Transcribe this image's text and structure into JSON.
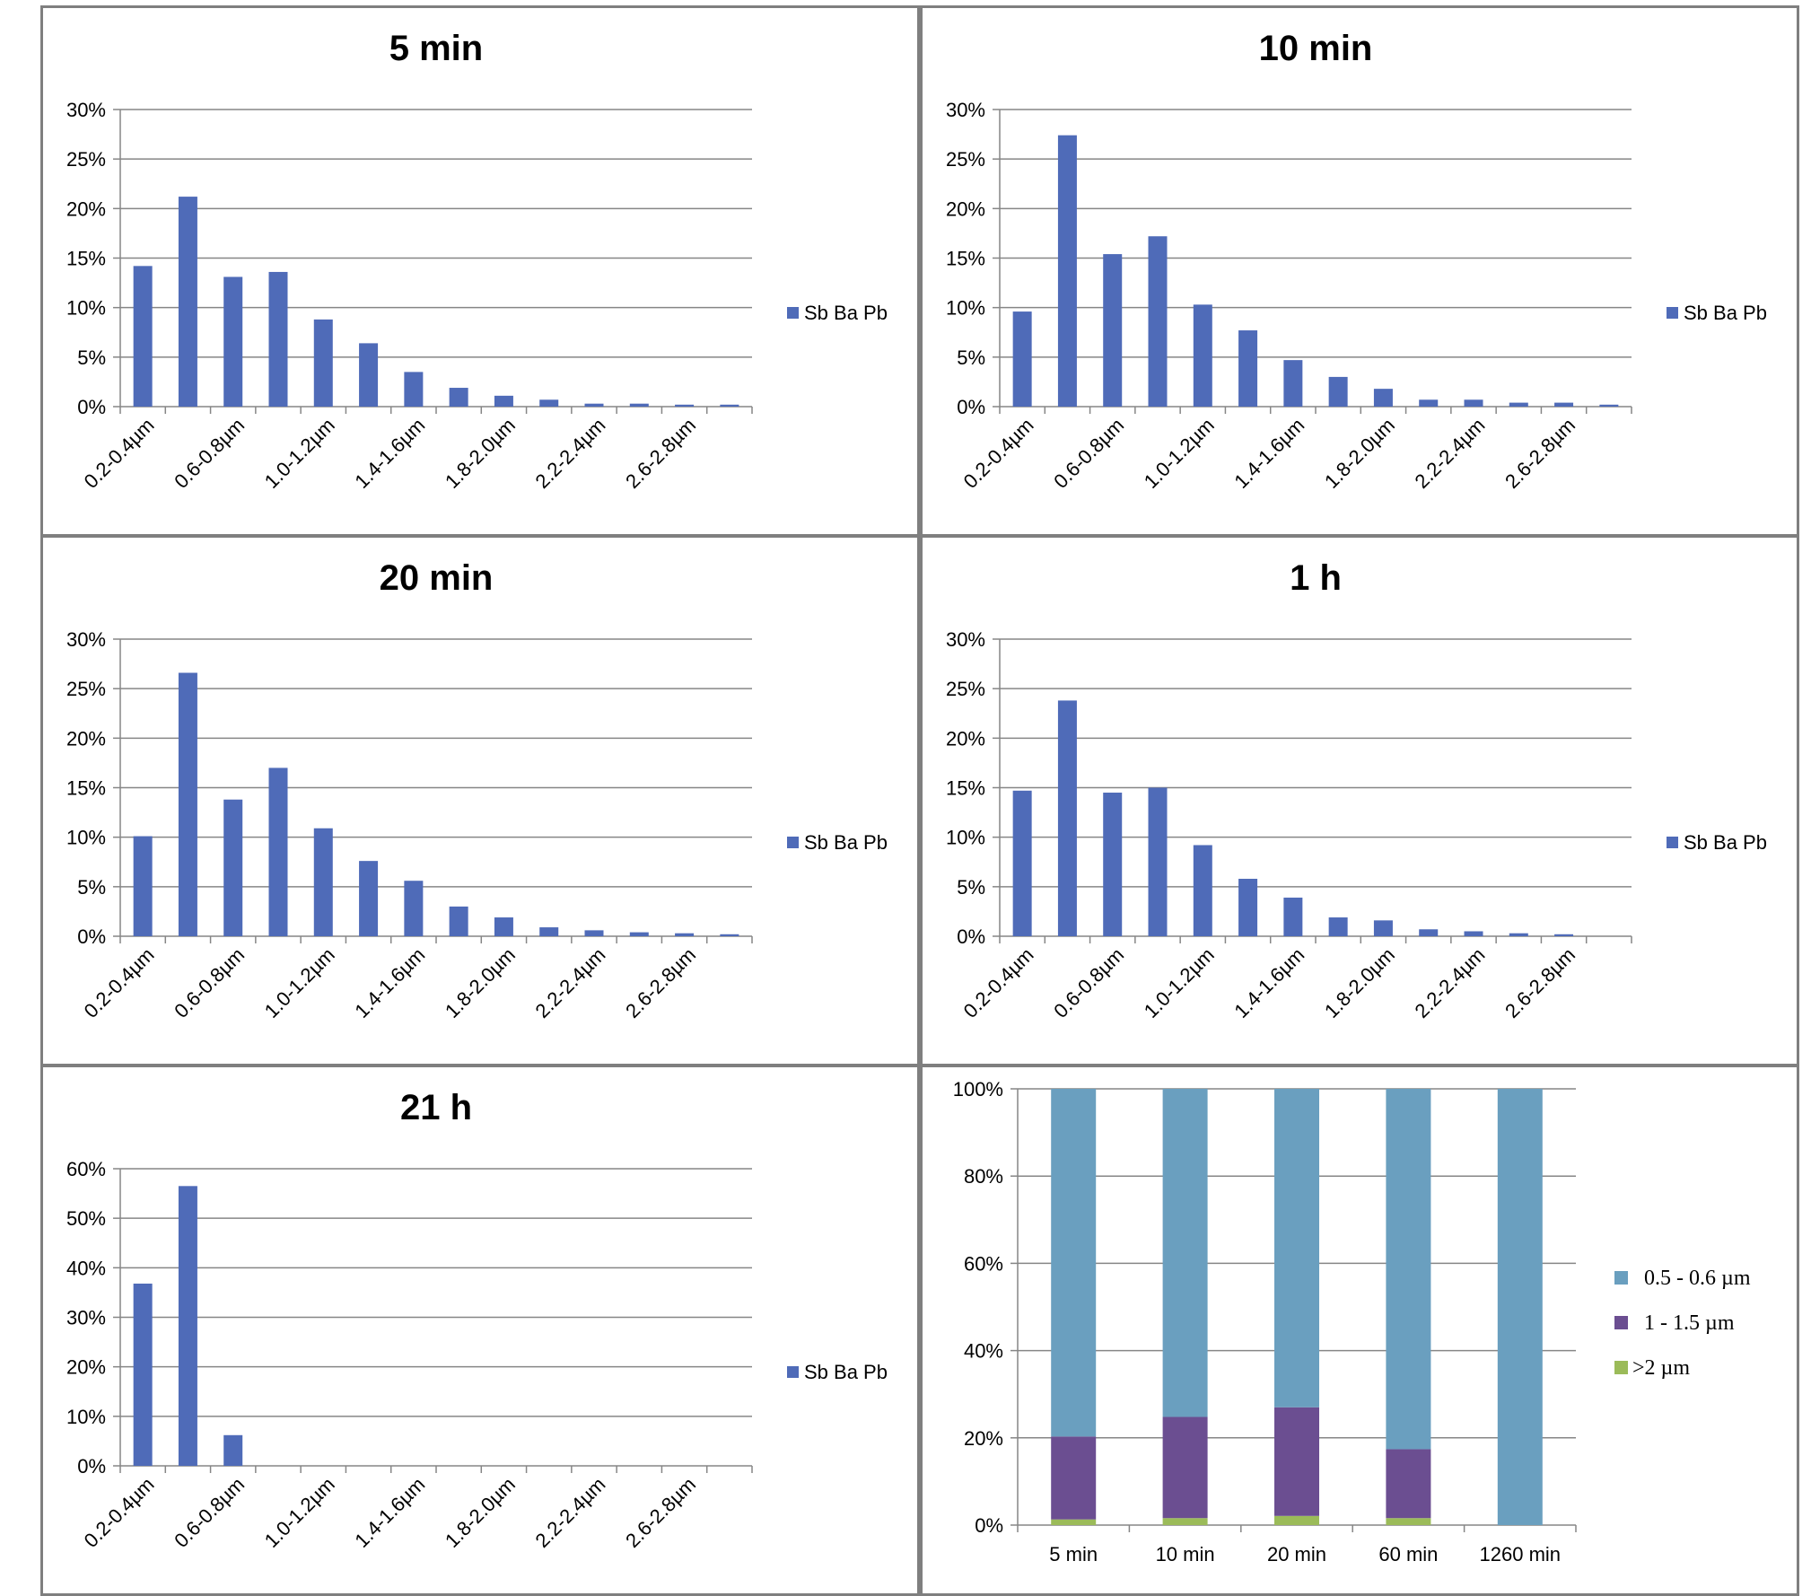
{
  "colors": {
    "bar": "#4f6bb8",
    "grid": "#868686",
    "stack_small": "#9bbb59",
    "stack_mid": "#6b4e91",
    "stack_large": "#6a9fbf"
  },
  "chart_data": [
    {
      "type": "bar",
      "title": "5 min",
      "categories": [
        "0.2-0.4µm",
        "",
        "0.6-0.8µm",
        "",
        "1.0-1.2µm",
        "",
        "1.4-1.6µm",
        "",
        "1.8-2.0µm",
        "",
        "2.2-2.4µm",
        "",
        "2.6-2.8µm",
        ""
      ],
      "series": [
        {
          "name": "Sb Ba Pb",
          "values": [
            14.2,
            21.2,
            13.1,
            13.6,
            8.8,
            6.4,
            3.5,
            1.9,
            1.1,
            0.7,
            0.3,
            0.3,
            0.2,
            0.2
          ]
        }
      ],
      "y_ticks": [
        "0%",
        "5%",
        "10%",
        "15%",
        "20%",
        "25%",
        "30%"
      ],
      "ylim": [
        0,
        30
      ],
      "grid": true,
      "legend_position": "right"
    },
    {
      "type": "bar",
      "title": "10 min",
      "categories": [
        "0.2-0.4µm",
        "",
        "0.6-0.8µm",
        "",
        "1.0-1.2µm",
        "",
        "1.4-1.6µm",
        "",
        "1.8-2.0µm",
        "",
        "2.2-2.4µm",
        "",
        "2.6-2.8µm",
        ""
      ],
      "series": [
        {
          "name": "Sb Ba Pb",
          "values": [
            9.6,
            27.4,
            15.4,
            17.2,
            10.3,
            7.7,
            4.7,
            3.0,
            1.8,
            0.7,
            0.7,
            0.4,
            0.4,
            0.2
          ]
        }
      ],
      "y_ticks": [
        "0%",
        "5%",
        "10%",
        "15%",
        "20%",
        "25%",
        "30%"
      ],
      "ylim": [
        0,
        30
      ],
      "grid": true,
      "legend_position": "right"
    },
    {
      "type": "bar",
      "title": "20 min",
      "categories": [
        "0.2-0.4µm",
        "",
        "0.6-0.8µm",
        "",
        "1.0-1.2µm",
        "",
        "1.4-1.6µm",
        "",
        "1.8-2.0µm",
        "",
        "2.2-2.4µm",
        "",
        "2.6-2.8µm",
        ""
      ],
      "series": [
        {
          "name": "Sb Ba Pb",
          "values": [
            10.1,
            26.6,
            13.8,
            17.0,
            10.9,
            7.6,
            5.6,
            3.0,
            1.9,
            0.9,
            0.6,
            0.4,
            0.3,
            0.2
          ]
        }
      ],
      "y_ticks": [
        "0%",
        "5%",
        "10%",
        "15%",
        "20%",
        "25%",
        "30%"
      ],
      "ylim": [
        0,
        30
      ],
      "grid": true,
      "legend_position": "right"
    },
    {
      "type": "bar",
      "title": "1 h",
      "categories": [
        "0.2-0.4µm",
        "",
        "0.6-0.8µm",
        "",
        "1.0-1.2µm",
        "",
        "1.4-1.6µm",
        "",
        "1.8-2.0µm",
        "",
        "2.2-2.4µm",
        "",
        "2.6-2.8µm",
        ""
      ],
      "series": [
        {
          "name": "Sb Ba Pb",
          "values": [
            14.7,
            23.8,
            14.5,
            15.0,
            9.2,
            5.8,
            3.9,
            1.9,
            1.6,
            0.7,
            0.5,
            0.3,
            0.2,
            0.0
          ]
        }
      ],
      "y_ticks": [
        "0%",
        "5%",
        "10%",
        "15%",
        "20%",
        "25%",
        "30%"
      ],
      "ylim": [
        0,
        30
      ],
      "grid": true,
      "legend_position": "right"
    },
    {
      "type": "bar",
      "title": "21 h",
      "categories": [
        "0.2-0.4µm",
        "",
        "0.6-0.8µm",
        "",
        "1.0-1.2µm",
        "",
        "1.4-1.6µm",
        "",
        "1.8-2.0µm",
        "",
        "2.2-2.4µm",
        "",
        "2.6-2.8µm",
        ""
      ],
      "series": [
        {
          "name": "Sb Ba Pb",
          "values": [
            36.8,
            56.5,
            6.2,
            0,
            0,
            0,
            0,
            0,
            0,
            0,
            0,
            0,
            0,
            0
          ]
        }
      ],
      "y_ticks": [
        "0%",
        "10%",
        "20%",
        "30%",
        "40%",
        "50%",
        "60%"
      ],
      "ylim": [
        0,
        60
      ],
      "grid": true,
      "legend_position": "right"
    },
    {
      "type": "bar",
      "stacked": true,
      "title": "",
      "categories": [
        "5 min",
        "10 min",
        "20 min",
        "60 min",
        "1260 min"
      ],
      "series": [
        {
          "name": ">2 µm",
          "values": [
            1.3,
            1.6,
            2.1,
            1.6,
            0
          ]
        },
        {
          "name": "1 - 1.5 µm",
          "values": [
            19.0,
            23.2,
            24.9,
            15.8,
            0
          ]
        },
        {
          "name": "0.5 - 0.6 µm",
          "values": [
            79.7,
            75.2,
            73.0,
            82.6,
            100
          ]
        }
      ],
      "y_ticks": [
        "0%",
        "20%",
        "40%",
        "60%",
        "80%",
        "100%"
      ],
      "ylim": [
        0,
        100
      ],
      "grid": true,
      "legend_position": "right"
    }
  ]
}
